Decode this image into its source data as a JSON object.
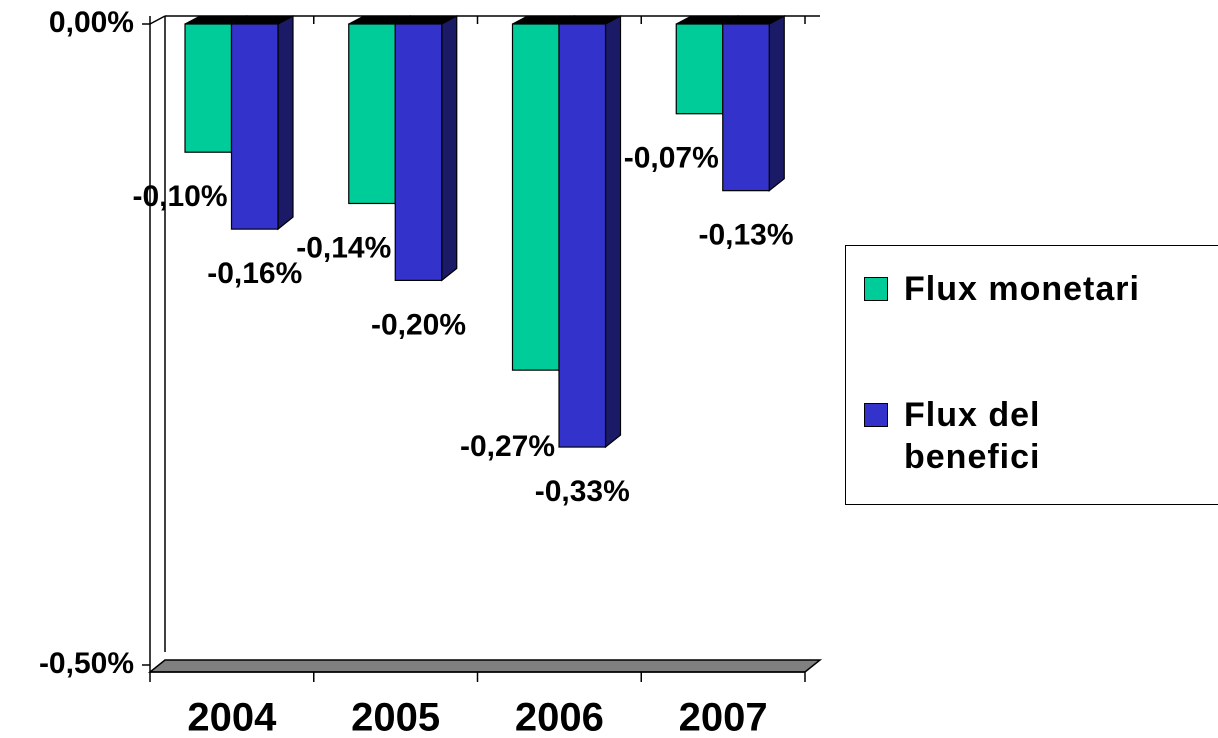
{
  "chart_data": {
    "type": "bar",
    "categories": [
      "2004",
      "2005",
      "2006",
      "2007"
    ],
    "series": [
      {
        "name": "Flux monetari",
        "color": "#00cc99",
        "values": [
          -0.1,
          -0.14,
          -0.27,
          -0.07
        ],
        "value_labels": [
          "-0,10%",
          "-0,14%",
          "-0,27%",
          "-0,07%"
        ]
      },
      {
        "name": "Flux del benefici",
        "color": "#3333cc",
        "values": [
          -0.16,
          -0.2,
          -0.33,
          -0.13
        ],
        "value_labels": [
          "-0,16%",
          "-0,20%",
          "-0,33%",
          "-0,13%"
        ]
      }
    ],
    "ylim": [
      -0.5,
      0
    ],
    "yticks": [
      {
        "value": 0,
        "label": "0,00%"
      },
      {
        "value": -0.5,
        "label": "-0,50%"
      }
    ],
    "legend": "right"
  }
}
